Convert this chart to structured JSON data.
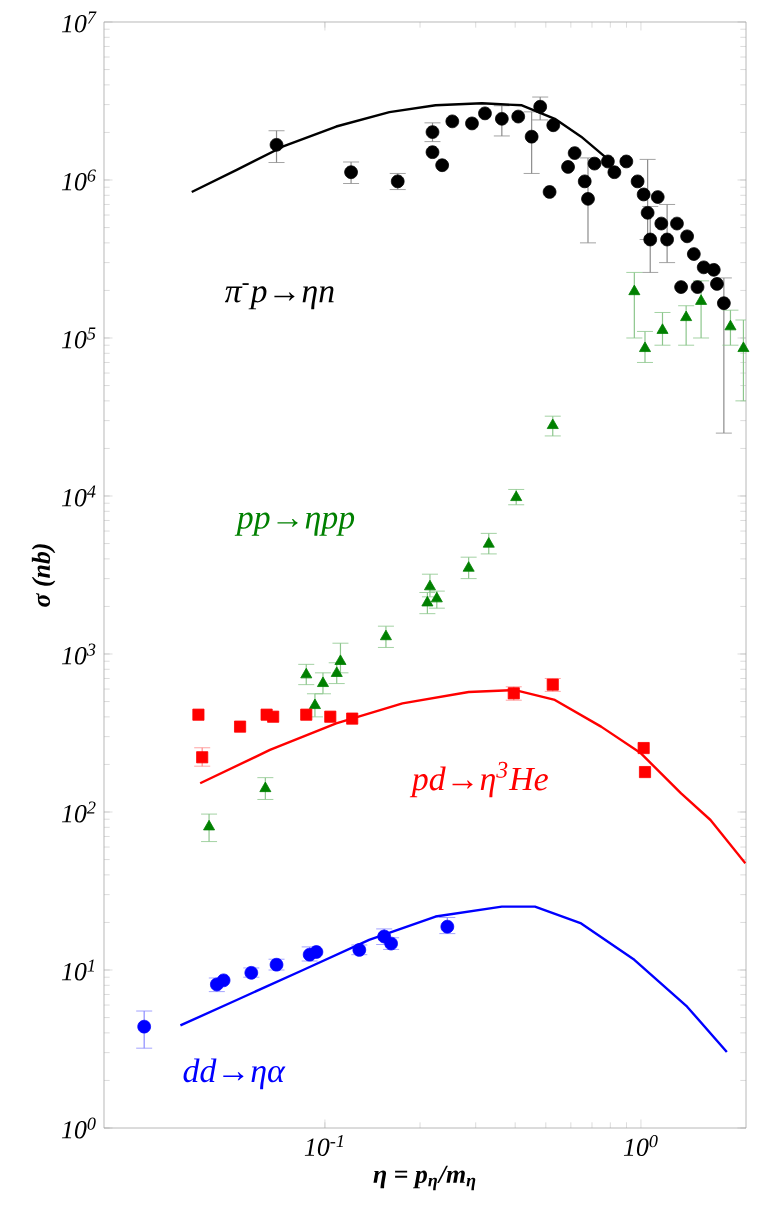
{
  "chart_data": {
    "type": "scatter",
    "log": "xy",
    "xlabel": "η = p$_{η}$/m$_{η}$",
    "ylabel": "σ (nb)",
    "xlim": [
      0.02,
      2.15
    ],
    "ylim": [
      1,
      10000000
    ],
    "xticks": [
      {
        "value": 0.1,
        "label": "10$^{-1}$"
      },
      {
        "value": 1,
        "label": "10$^{0}$"
      }
    ],
    "yticks": [
      {
        "value": 1,
        "label": "10$^{0}$"
      },
      {
        "value": 10,
        "label": "10$^{1}$"
      },
      {
        "value": 100,
        "label": "10$^{2}$"
      },
      {
        "value": 1000,
        "label": "10$^{3}$"
      },
      {
        "value": 10000,
        "label": "10$^{4}$"
      },
      {
        "value": 100000,
        "label": "10$^{5}$"
      },
      {
        "value": 1000000,
        "label": "10$^{6}$"
      },
      {
        "value": 10000000,
        "label": "10$^{7}$"
      }
    ],
    "series": [
      {
        "name": "π$^{-}$p→ηn",
        "marker": "circle",
        "color": "#000000",
        "x": [
          0.0703,
          0.121,
          0.17,
          0.219,
          0.219,
          0.235,
          0.253,
          0.292,
          0.321,
          0.363,
          0.409,
          0.451,
          0.48,
          0.514,
          0.528,
          0.588,
          0.617,
          0.664,
          0.68,
          0.713,
          0.786,
          0.824,
          0.899,
          0.976,
          1.02,
          1.05,
          1.13,
          1.07,
          1.16,
          1.21,
          1.3,
          1.4,
          1.47,
          1.34,
          1.58,
          1.7,
          1.74,
          1.83,
          1.51
        ],
        "values": [
          1670000,
          1120000,
          980000,
          2010000,
          1500000,
          1240000,
          2350000,
          2280000,
          2640000,
          2440000,
          2520000,
          1880000,
          2910000,
          840000,
          2220000,
          1210000,
          1480000,
          980000,
          760000,
          1270000,
          1310000,
          1120000,
          1310000,
          980000,
          810000,
          620000,
          780000,
          420000,
          530000,
          420000,
          530000,
          440000,
          340000,
          210000,
          280000,
          270000,
          220000,
          166000,
          210000
        ],
        "errors": [
          [
            1290000,
            2050000
          ],
          [
            950000,
            1300000
          ],
          [
            870000,
            1100000
          ],
          [
            1750000,
            2300000
          ],
          null,
          null,
          null,
          null,
          null,
          [
            1900000,
            2950000
          ],
          null,
          [
            1100000,
            2700000
          ],
          [
            2400000,
            3350000
          ],
          null,
          null,
          null,
          null,
          null,
          [
            400000,
            1380000
          ],
          null,
          null,
          null,
          null,
          null,
          null,
          [
            420000,
            1350000
          ],
          null,
          [
            260000,
            680000
          ],
          null,
          [
            300000,
            700000
          ],
          null,
          null,
          null,
          null,
          null,
          null,
          null,
          [
            25000,
            240000
          ],
          null
        ]
      },
      {
        "type": "line",
        "marker": "none",
        "color": "#000000",
        "x": [
          0.0379,
          0.0526,
          0.0738,
          0.1086,
          0.16,
          0.224,
          0.314,
          0.42,
          0.534,
          0.647,
          0.767
        ],
        "values": [
          840000,
          1160000,
          1630000,
          2180000,
          2690000,
          2970000,
          3060000,
          2970000,
          2440000,
          1880000,
          1410000
        ]
      },
      {
        "name": "pp→ηpp",
        "marker": "triangle",
        "color": "#008000",
        "x": [
          0.043,
          0.0648,
          0.0873,
          0.093,
          0.0986,
          0.112,
          0.109,
          0.156,
          0.211,
          0.215,
          0.226,
          0.285,
          0.33,
          0.403,
          0.526,
          0.953,
          1.03,
          1.17,
          1.39,
          1.55,
          1.92,
          2.11
        ],
        "values": [
          80.7,
          141,
          740,
          473,
          652,
          899,
          755,
          1290,
          2110,
          2670,
          2240,
          3500,
          4970,
          9800,
          28000,
          197000,
          86000,
          112000,
          135000,
          171000,
          118000,
          86000
        ],
        "errors": [
          [
            65,
            97
          ],
          [
            120,
            165
          ],
          [
            640,
            860
          ],
          [
            400,
            560
          ],
          [
            560,
            760
          ],
          [
            760,
            1170
          ],
          [
            650,
            880
          ],
          [
            1100,
            1500
          ],
          [
            1800,
            2450
          ],
          [
            2300,
            3200
          ],
          [
            1950,
            2500
          ],
          [
            3000,
            4100
          ],
          [
            4300,
            5800
          ],
          [
            8800,
            11000
          ],
          [
            24000,
            32000
          ],
          [
            100000,
            260000
          ],
          [
            70000,
            110000
          ],
          [
            90000,
            145000
          ],
          [
            90000,
            160000
          ],
          [
            100000,
            230000
          ],
          [
            90000,
            150000
          ],
          [
            40000,
            130000
          ]
        ]
      },
      {
        "name": "pd→η$^{3}$He",
        "marker": "square",
        "color": "#ff0000",
        "x": [
          0.0398,
          0.0409,
          0.0539,
          0.0654,
          0.0686,
          0.0873,
          0.104,
          0.122,
          0.396,
          0.526,
          1.02,
          1.03
        ],
        "values": [
          413,
          222,
          347,
          413,
          401,
          413,
          401,
          390,
          564,
          640,
          254,
          179
        ],
        "errors": [
          null,
          [
            195,
            255
          ],
          null,
          null,
          null,
          null,
          null,
          null,
          [
            510,
            620
          ],
          [
            580,
            700
          ],
          null,
          null
        ]
      },
      {
        "type": "line",
        "marker": "none",
        "color": "#ff0000",
        "x": [
          0.0403,
          0.067,
          0.1086,
          0.176,
          0.285,
          0.4,
          0.534,
          0.748,
          1.0,
          1.34,
          1.66,
          2.14
        ],
        "values": [
          152,
          247,
          364,
          487,
          575,
          591,
          512,
          347,
          235,
          131,
          89,
          47.3
        ]
      },
      {
        "name": "dd→ηα",
        "marker": "circle",
        "color": "#0000ff",
        "x": [
          0.0268,
          0.0455,
          0.0478,
          0.0585,
          0.0703,
          0.0895,
          0.094,
          0.1285,
          0.154,
          0.162,
          0.244
        ],
        "values": [
          4.38,
          8.1,
          8.6,
          9.6,
          10.8,
          12.5,
          13.0,
          13.4,
          16.3,
          14.7,
          18.8
        ],
        "errors": [
          [
            3.2,
            5.5
          ],
          [
            7.3,
            8.9
          ],
          null,
          [
            9.0,
            10.3
          ],
          [
            10.0,
            11.7
          ],
          [
            11.4,
            14.0
          ],
          null,
          [
            12.5,
            14.4
          ],
          [
            14.5,
            18.2
          ],
          [
            13.5,
            16.0
          ],
          [
            17.0,
            21.5
          ]
        ]
      },
      {
        "type": "line",
        "marker": "none",
        "color": "#0000ff",
        "x": [
          0.0349,
          0.0526,
          0.0853,
          0.138,
          0.224,
          0.363,
          0.462,
          0.647,
          0.953,
          1.4,
          1.87
        ],
        "values": [
          4.46,
          6.46,
          10.0,
          15.5,
          21.8,
          25.2,
          25.2,
          19.7,
          11.6,
          5.86,
          3.03
        ]
      }
    ]
  }
}
